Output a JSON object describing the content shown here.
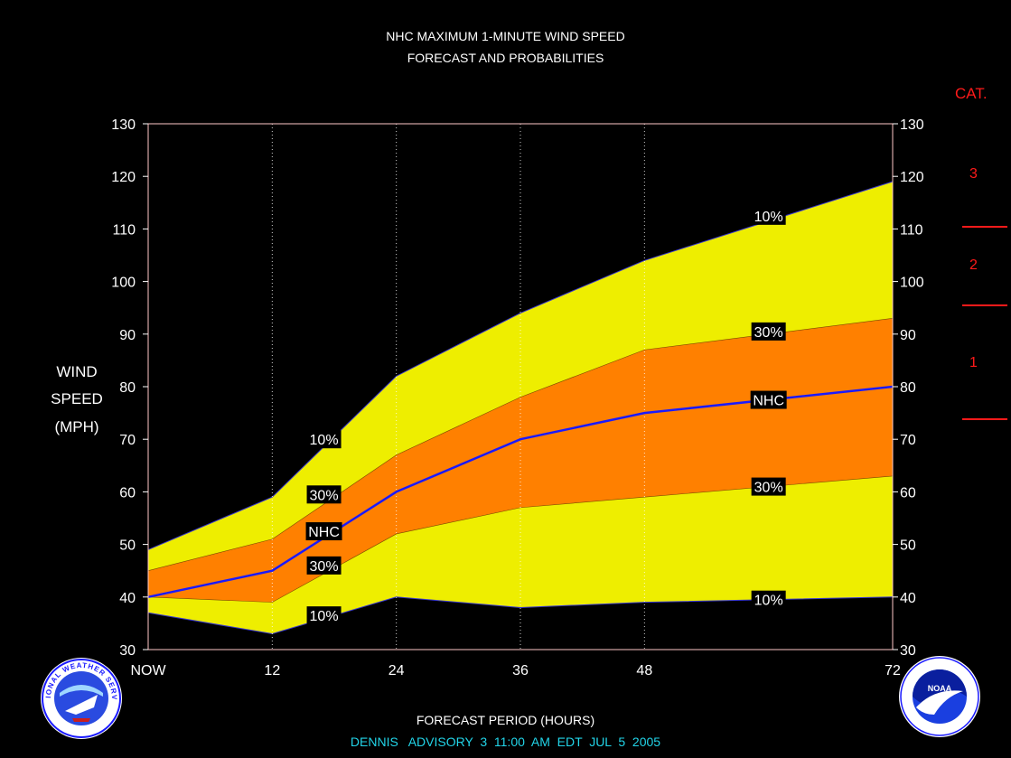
{
  "header": {
    "title_line1": "NHC MAXIMUM 1-MINUTE WIND SPEED",
    "title_line2": "FORECAST AND PROBABILITIES"
  },
  "ylabel_lines": [
    "WIND",
    "SPEED",
    "(MPH)"
  ],
  "xlabel": "FORECAST PERIOD (HOURS)",
  "footer": "DENNIS   ADVISORY  3  11:00  AM  EDT  JUL  5  2005",
  "category_scale": {
    "title": "CAT.",
    "categories": [
      "3",
      "2",
      "1"
    ],
    "color": "#ff1a1a"
  },
  "logos": {
    "left_icon": "nws-logo-icon",
    "right_icon": "noaa-logo-icon",
    "left_text": "NATIONAL WEATHER SERVICE",
    "right_text": "NOAA"
  },
  "chart_data": {
    "type": "area",
    "title": "NHC MAXIMUM 1-MINUTE WIND SPEED FORECAST AND PROBABILITIES",
    "xlabel": "FORECAST PERIOD (HOURS)",
    "ylabel": "WIND SPEED (MPH)",
    "x_ticks": [
      0,
      12,
      24,
      36,
      48,
      72
    ],
    "x_tick_labels": [
      "NOW",
      "12",
      "24",
      "36",
      "48",
      "72"
    ],
    "y_ticks": [
      30,
      40,
      50,
      60,
      70,
      80,
      90,
      100,
      110,
      120,
      130
    ],
    "xlim": [
      0,
      72
    ],
    "ylim": [
      30,
      130
    ],
    "grid": "vertical dotted lines at 12, 24, 36, 48",
    "x": [
      0,
      12,
      24,
      36,
      48,
      72
    ],
    "series": [
      {
        "name": "10%",
        "values": [
          49,
          59,
          82,
          94,
          104,
          119
        ]
      },
      {
        "name": "30%",
        "values": [
          45,
          51,
          67,
          78,
          87,
          93
        ]
      },
      {
        "name": "NHC",
        "values": [
          40,
          45,
          60,
          70,
          75,
          80
        ]
      },
      {
        "name": "30%",
        "values": [
          40,
          39,
          52,
          57,
          59,
          63
        ]
      },
      {
        "name": "10%",
        "values": [
          37,
          33,
          40,
          38,
          39,
          40
        ]
      }
    ],
    "series_colors": {
      "outer_band": "#eeee00",
      "inner_band": "#ff8000",
      "nhc_line": "#1a1aff",
      "background": "#000000",
      "plot_border": "#ffc8c8"
    },
    "labels": [
      {
        "text": "10%",
        "x": 17,
        "y": 70
      },
      {
        "text": "30%",
        "x": 17,
        "y": 59.5
      },
      {
        "text": "NHC",
        "x": 17,
        "y": 52.5
      },
      {
        "text": "30%",
        "x": 17,
        "y": 46
      },
      {
        "text": "10%",
        "x": 17,
        "y": 36.5
      },
      {
        "text": "10%",
        "x": 60,
        "y": 112.5
      },
      {
        "text": "30%",
        "x": 60,
        "y": 90.5
      },
      {
        "text": "NHC",
        "x": 60,
        "y": 77.5
      },
      {
        "text": "30%",
        "x": 60,
        "y": 61
      },
      {
        "text": "10%",
        "x": 60,
        "y": 39.5
      }
    ],
    "category_boundaries_mph": [
      111,
      96,
      74
    ]
  }
}
